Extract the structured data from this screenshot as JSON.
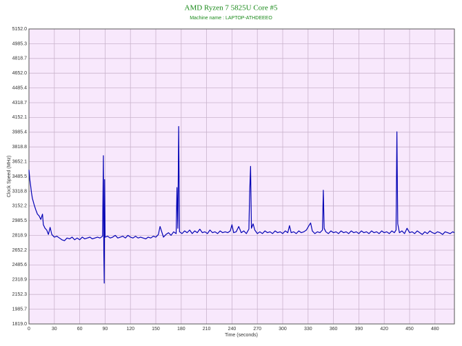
{
  "chart_data": {
    "type": "line",
    "title": "AMD Ryzen 7 5825U Core #5",
    "subtitle": "Machine name : LAPTOP-ATHDEEEO",
    "x_label": "Time (seconds)",
    "y_label": "Clock Speed (MHz)",
    "xlim": [
      0,
      503
    ],
    "ylim": [
      1819.0,
      5152.0
    ],
    "xticks": [
      0,
      30,
      60,
      90,
      120,
      150,
      180,
      210,
      240,
      270,
      300,
      330,
      360,
      390,
      420,
      450,
      480
    ],
    "yticks": [
      {
        "value": 1819.0,
        "label": "1819.0"
      },
      1985.7,
      2152.3,
      2318.9,
      2485.6,
      2652.2,
      2818.9,
      2985.5,
      3152.2,
      3318.8,
      3485.5,
      3652.1,
      3818.8,
      3985.4,
      4152.1,
      4318.7,
      4485.4,
      {
        "value": 4652.0,
        "label": "4652.0"
      },
      4818.7,
      4985.3,
      {
        "value": 5152.0,
        "label": "5152.0"
      }
    ],
    "grid": true,
    "series": [
      {
        "color": "#0000b4",
        "x": [
          0,
          1,
          2,
          3,
          4,
          6,
          8,
          10,
          12,
          14,
          16,
          17,
          19,
          21,
          23,
          25,
          27,
          30,
          33,
          36,
          39,
          42,
          45,
          48,
          51,
          54,
          57,
          60,
          63,
          66,
          69,
          72,
          75,
          78,
          81,
          84,
          87,
          88,
          88.5,
          89,
          89.5,
          90,
          93,
          96,
          99,
          102,
          105,
          108,
          111,
          114,
          117,
          120,
          123,
          126,
          129,
          132,
          135,
          138,
          141,
          144,
          147,
          150,
          153,
          155,
          157,
          159,
          162,
          165,
          168,
          171,
          174,
          175,
          176,
          177,
          178,
          181,
          184,
          187,
          190,
          193,
          196,
          199,
          202,
          205,
          208,
          211,
          214,
          217,
          220,
          223,
          226,
          229,
          232,
          235,
          238,
          240,
          242,
          245,
          248,
          251,
          254,
          257,
          260,
          261,
          262,
          263,
          265,
          267,
          270,
          273,
          276,
          279,
          282,
          285,
          288,
          291,
          294,
          297,
          300,
          303,
          306,
          308,
          310,
          313,
          316,
          319,
          322,
          325,
          328,
          331,
          333,
          335,
          338,
          341,
          344,
          347,
          348,
          349,
          351,
          354,
          357,
          360,
          363,
          366,
          369,
          372,
          375,
          378,
          381,
          384,
          387,
          390,
          393,
          396,
          399,
          402,
          405,
          408,
          411,
          414,
          417,
          420,
          423,
          426,
          429,
          432,
          434,
          435,
          436,
          438,
          441,
          444,
          447,
          450,
          453,
          456,
          459,
          462,
          465,
          468,
          471,
          474,
          477,
          480,
          483,
          486,
          489,
          492,
          495,
          498,
          501,
          503
        ],
        "values": [
          3560,
          3450,
          3380,
          3300,
          3240,
          3170,
          3110,
          3060,
          3040,
          3000,
          3060,
          2940,
          2900,
          2880,
          2830,
          2910,
          2830,
          2800,
          2810,
          2790,
          2770,
          2760,
          2790,
          2780,
          2800,
          2770,
          2790,
          2770,
          2800,
          2780,
          2790,
          2800,
          2780,
          2790,
          2800,
          2790,
          2810,
          3720,
          2620,
          2280,
          3450,
          2800,
          2810,
          2790,
          2800,
          2820,
          2790,
          2800,
          2810,
          2790,
          2820,
          2800,
          2790,
          2810,
          2790,
          2800,
          2790,
          2780,
          2800,
          2790,
          2810,
          2800,
          2830,
          2920,
          2860,
          2800,
          2830,
          2850,
          2820,
          2860,
          2840,
          3360,
          2900,
          4050,
          2860,
          2840,
          2870,
          2850,
          2880,
          2840,
          2870,
          2850,
          2890,
          2850,
          2860,
          2840,
          2880,
          2850,
          2860,
          2840,
          2870,
          2850,
          2860,
          2850,
          2870,
          2940,
          2850,
          2860,
          2920,
          2850,
          2870,
          2840,
          2890,
          3320,
          3600,
          2900,
          2950,
          2880,
          2840,
          2860,
          2840,
          2870,
          2850,
          2860,
          2840,
          2870,
          2850,
          2860,
          2840,
          2870,
          2850,
          2930,
          2850,
          2860,
          2840,
          2870,
          2850,
          2860,
          2880,
          2930,
          2960,
          2870,
          2840,
          2860,
          2850,
          2880,
          3330,
          2900,
          2860,
          2840,
          2870,
          2850,
          2860,
          2840,
          2870,
          2850,
          2860,
          2840,
          2870,
          2850,
          2860,
          2840,
          2870,
          2850,
          2860,
          2840,
          2870,
          2850,
          2860,
          2840,
          2870,
          2850,
          2860,
          2840,
          2870,
          2850,
          2880,
          3990,
          2950,
          2850,
          2870,
          2840,
          2900,
          2850,
          2860,
          2840,
          2870,
          2850,
          2830,
          2860,
          2840,
          2870,
          2850,
          2840,
          2860,
          2850,
          2830,
          2860,
          2850,
          2840,
          2860,
          2850
        ]
      }
    ]
  }
}
